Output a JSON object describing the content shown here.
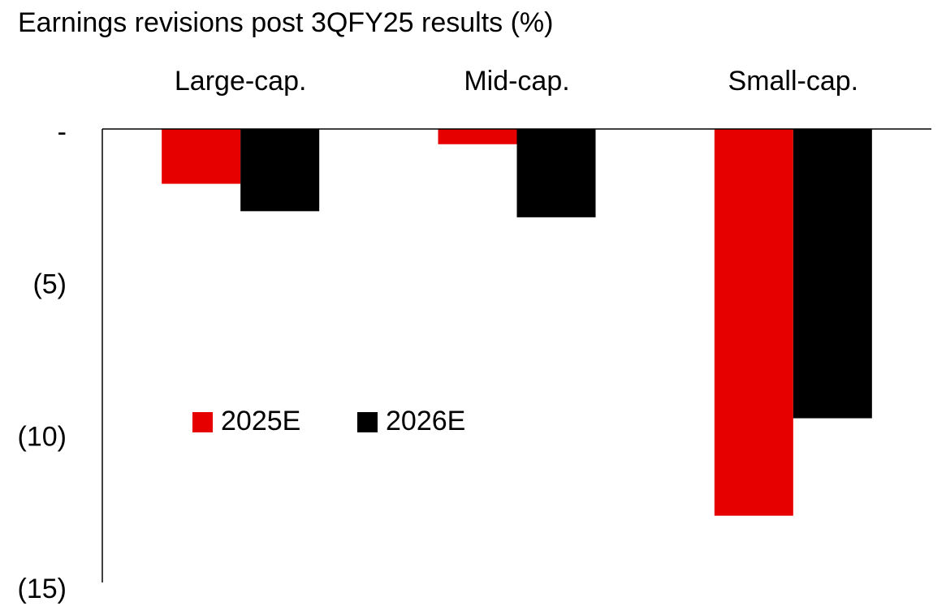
{
  "chart_data": {
    "type": "bar",
    "title": "Earnings revisions post 3QFY25 results (%)",
    "categories": [
      "Large-cap.",
      "Mid-cap.",
      "Small-cap."
    ],
    "series": [
      {
        "name": "2025E",
        "color": "#e60000",
        "values": [
          -1.8,
          -0.5,
          -12.7
        ]
      },
      {
        "name": "2026E",
        "color": "#000000",
        "values": [
          -2.7,
          -2.9,
          -9.5
        ]
      }
    ],
    "ylim": [
      -15,
      0
    ],
    "yticks": [
      {
        "value": 0,
        "label": "-"
      },
      {
        "value": -5,
        "label": "(5)"
      },
      {
        "value": -10,
        "label": "(10)"
      },
      {
        "value": -15,
        "label": "(15)"
      }
    ],
    "grid": false
  }
}
